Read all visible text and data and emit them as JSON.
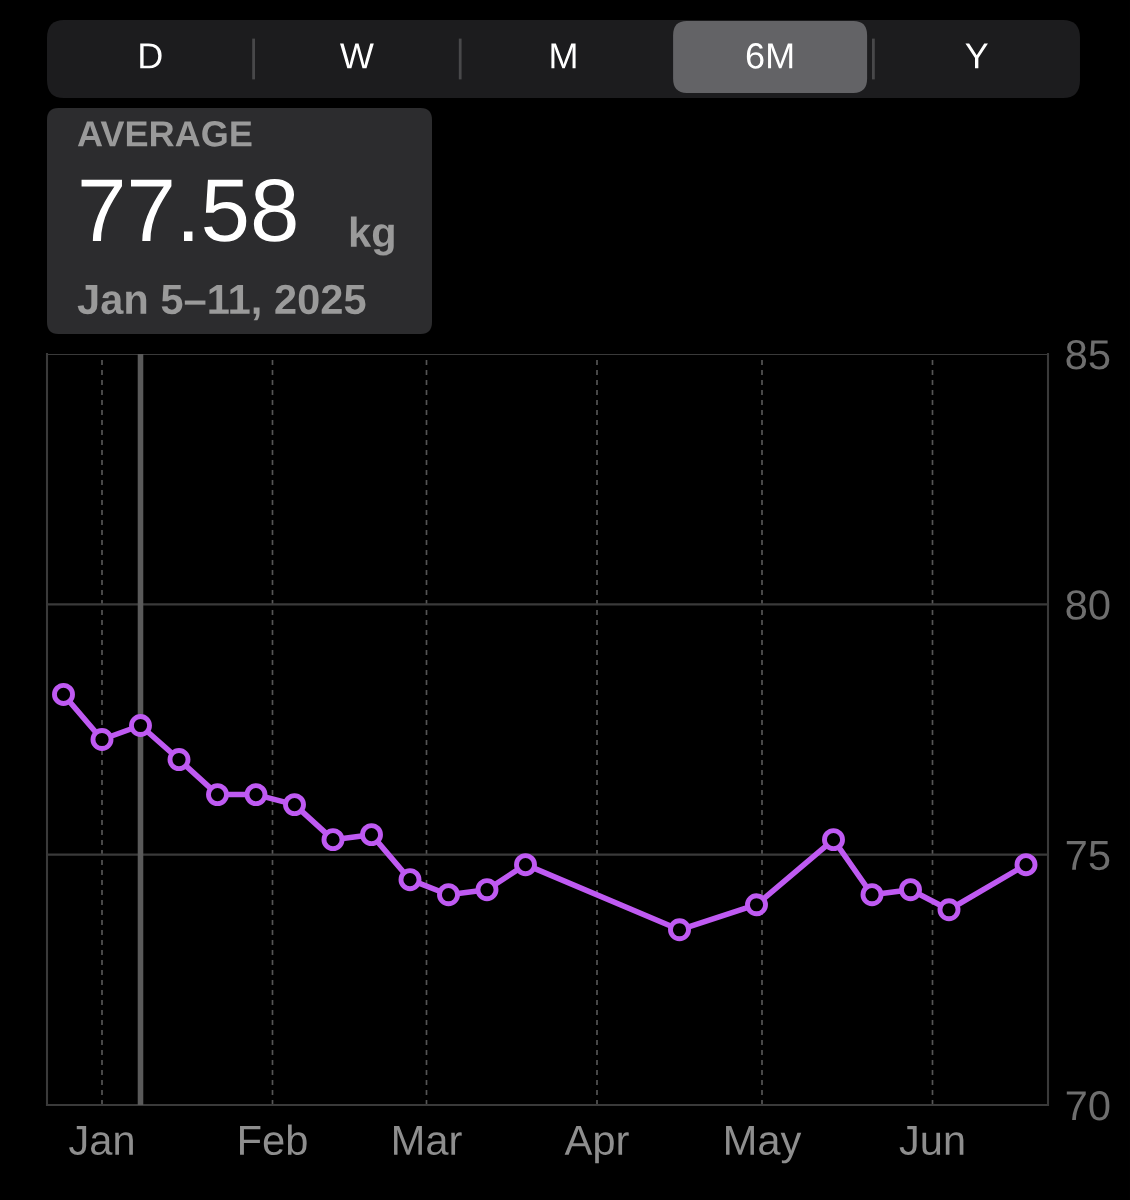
{
  "chart_data": {
    "type": "line",
    "x": [
      "2024-12-25",
      "2025-01-01",
      "2025-01-08",
      "2025-01-15",
      "2025-01-22",
      "2025-01-29",
      "2025-02-05",
      "2025-02-12",
      "2025-02-19",
      "2025-02-26",
      "2025-03-05",
      "2025-03-12",
      "2025-03-19",
      "2025-04-16",
      "2025-04-30",
      "2025-05-14",
      "2025-05-21",
      "2025-05-28",
      "2025-06-04",
      "2025-06-18"
    ],
    "series": [
      {
        "color": "#bf5af2",
        "values": [
          78.2,
          77.3,
          77.58,
          76.9,
          76.2,
          76.2,
          76.0,
          75.3,
          75.4,
          74.5,
          74.2,
          74.3,
          74.8,
          73.5,
          74.0,
          75.3,
          74.2,
          74.3,
          73.9,
          74.8
        ]
      }
    ],
    "xlim": [
      "2024-12-22",
      "2025-06-22"
    ],
    "xticks": [
      {
        "value": "2025-01-01",
        "label": "Jan"
      },
      {
        "value": "2025-02-01",
        "label": "Feb"
      },
      {
        "value": "2025-03-01",
        "label": "Mar"
      },
      {
        "value": "2025-04-01",
        "label": "Apr"
      },
      {
        "value": "2025-05-01",
        "label": "May"
      },
      {
        "value": "2025-06-01",
        "label": "Jun"
      }
    ],
    "ylim": [
      70,
      85
    ],
    "yticks": [
      70,
      75,
      80,
      85
    ],
    "grid": true,
    "marker": "circle",
    "line_style": "solid",
    "legend": false,
    "ref_lines": [
      {
        "axis": "x",
        "value": "2025-01-08",
        "color": "#5a5a5a"
      }
    ],
    "annotations": [
      "D",
      "W",
      "M",
      "6M",
      "Y",
      "AVERAGE",
      "77.58",
      "kg",
      "Jan 5–11, 2025"
    ]
  }
}
